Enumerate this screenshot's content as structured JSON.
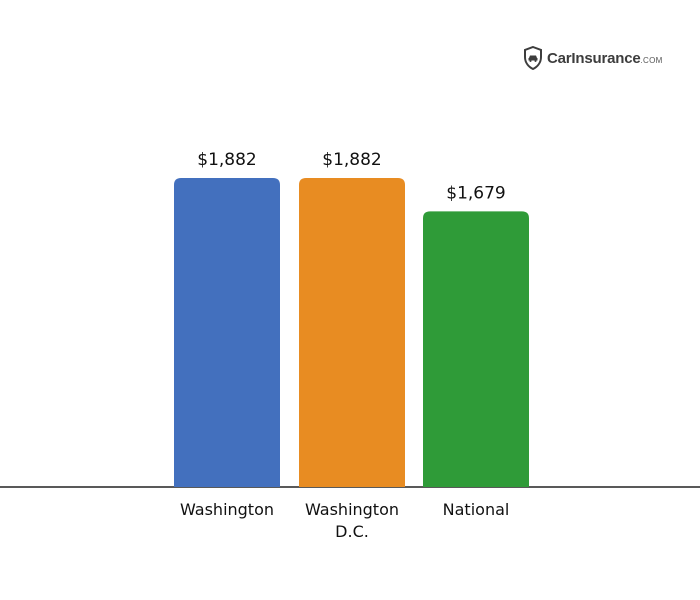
{
  "logo": {
    "brand_text": "CarInsurance",
    "brand_suffix": ".COM",
    "icon": "shield-car-icon"
  },
  "chart_data": {
    "type": "bar",
    "categories": [
      "Washington",
      "Washington D.C.",
      "National"
    ],
    "category_lines": [
      [
        "Washington"
      ],
      [
        "Washington",
        "D.C."
      ],
      [
        "National"
      ]
    ],
    "values": [
      1882,
      1882,
      1679
    ],
    "value_labels": [
      "$1,882",
      "$1,882",
      "$1,679"
    ],
    "colors": [
      "#4370be",
      "#e88c22",
      "#2f9b38"
    ],
    "ylim": [
      0,
      1882
    ],
    "title": "",
    "xlabel": "",
    "ylabel": "",
    "grid": false,
    "legend": "none"
  }
}
